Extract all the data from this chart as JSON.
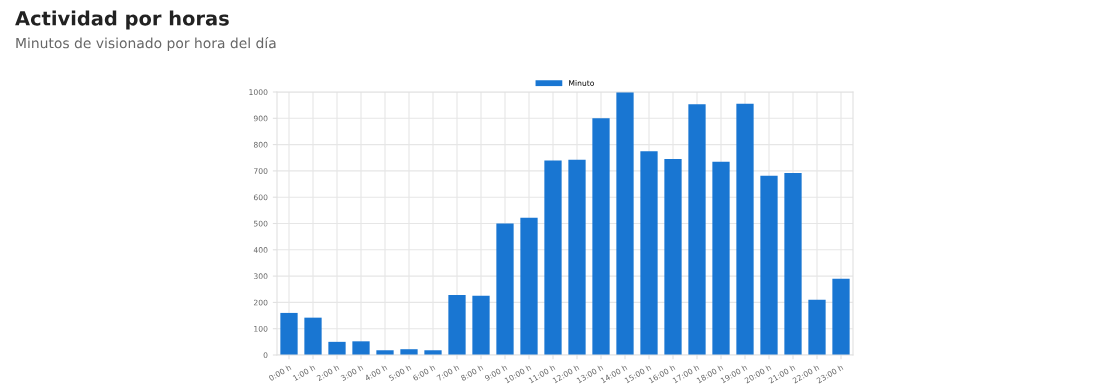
{
  "chart_data": {
    "type": "bar",
    "title": "Actividad por horas",
    "subtitle": "Minutos de visionado por hora del día",
    "categories": [
      "0:00 h",
      "1:00 h",
      "2:00 h",
      "3:00 h",
      "4:00 h",
      "5:00 h",
      "6:00 h",
      "7:00 h",
      "8:00 h",
      "9:00 h",
      "10:00 h",
      "11:00 h",
      "12:00 h",
      "13:00 h",
      "14:00 h",
      "15:00 h",
      "16:00 h",
      "17:00 h",
      "18:00 h",
      "19:00 h",
      "20:00 h",
      "21:00 h",
      "22:00 h",
      "23:00 h"
    ],
    "series": [
      {
        "name": "Minuto",
        "color": "#1976d2",
        "values": [
          160,
          142,
          50,
          52,
          18,
          22,
          18,
          228,
          225,
          500,
          522,
          740,
          742,
          900,
          1000,
          775,
          745,
          953,
          735,
          955,
          682,
          692,
          210,
          290
        ]
      }
    ],
    "ylim": [
      0,
      1000
    ],
    "yticks": [
      0,
      100,
      200,
      300,
      400,
      500,
      600,
      700,
      800,
      900,
      1000
    ],
    "grid": true,
    "legend": "top"
  }
}
